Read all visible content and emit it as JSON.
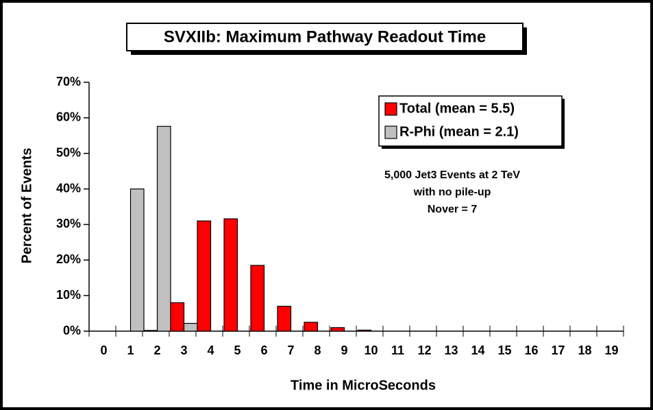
{
  "chart_data": {
    "type": "bar",
    "title": "SVXIIb: Maximum Pathway Readout Time",
    "x_label": "Time in MicroSeconds",
    "y_label": "Percent of Events",
    "annotation": [
      "5,000 Jet3 Events at 2 TeV",
      "with no pile-up",
      "Nover = 7"
    ],
    "categories": [
      "0",
      "1",
      "2",
      "3",
      "4",
      "5",
      "6",
      "7",
      "8",
      "9",
      "10",
      "11",
      "12",
      "13",
      "14",
      "15",
      "16",
      "17",
      "18",
      "19"
    ],
    "series": [
      {
        "name": "Total (mean = 5.5)",
        "color": "#ff0000",
        "values": [
          0,
          0,
          0.2,
          8,
          31,
          31.6,
          18.5,
          7,
          2.5,
          1,
          0.3,
          0,
          0,
          0,
          0,
          0,
          0,
          0,
          0,
          0
        ]
      },
      {
        "name": "R-Phi (mean = 2.1)",
        "color": "#c0c0c0",
        "values": [
          0,
          40,
          57.6,
          2.2,
          0,
          0,
          0,
          0,
          0,
          0,
          0,
          0,
          0,
          0,
          0,
          0,
          0,
          0,
          0,
          0
        ]
      }
    ],
    "ylim": [
      0,
      70
    ],
    "yticks": [
      {
        "value": 0,
        "label": "0%"
      },
      {
        "value": 10,
        "label": "10%"
      },
      {
        "value": 20,
        "label": "20%"
      },
      {
        "value": 30,
        "label": "30%"
      },
      {
        "value": 40,
        "label": "40%"
      },
      {
        "value": 50,
        "label": "50%"
      },
      {
        "value": 60,
        "label": "60%"
      },
      {
        "value": 70,
        "label": "70%"
      }
    ],
    "legend": "upper right"
  }
}
